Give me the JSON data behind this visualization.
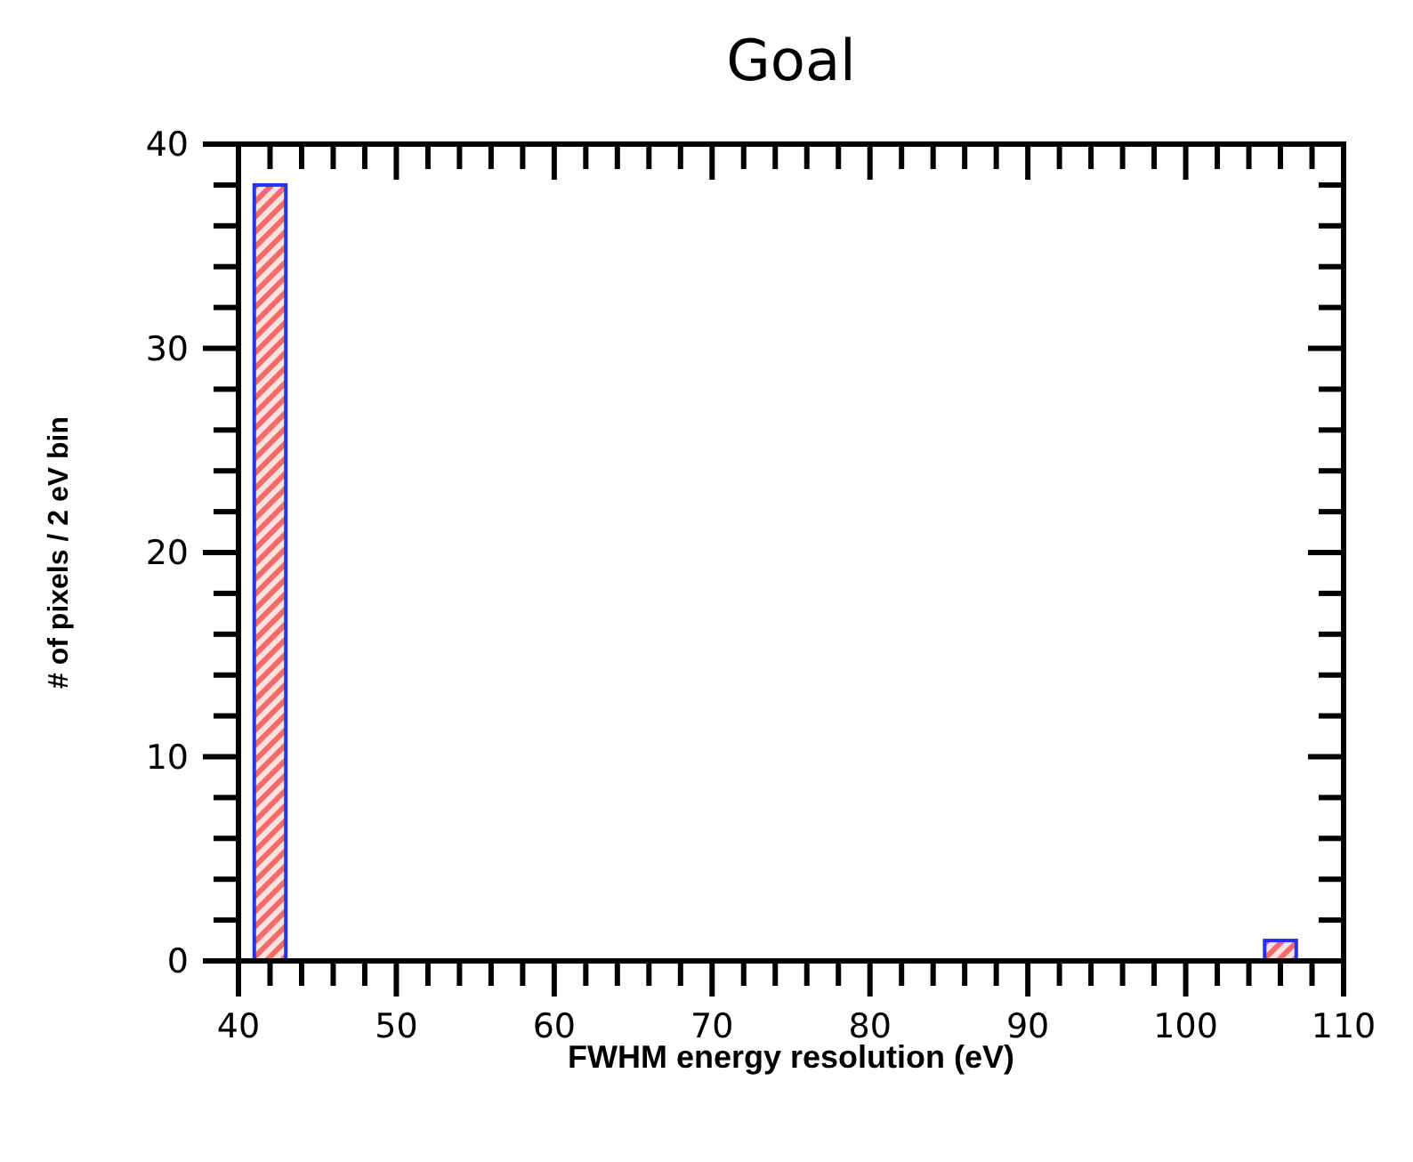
{
  "chart_data": {
    "type": "histogram",
    "title": "Goal",
    "xlabel": "FWHM energy resolution (eV)",
    "ylabel": "# of pixels / 2 eV bin",
    "bins": [
      41,
      43,
      105,
      107
    ],
    "values": [
      38,
      null,
      1
    ],
    "color": "#2233ee",
    "xlim": [
      40,
      110
    ],
    "xticks": [
      40,
      50,
      60,
      70,
      80,
      90,
      100,
      110
    ],
    "ylim": [
      0,
      40
    ],
    "yticks": [
      0,
      10,
      20,
      30,
      40
    ],
    "grid": false
  }
}
